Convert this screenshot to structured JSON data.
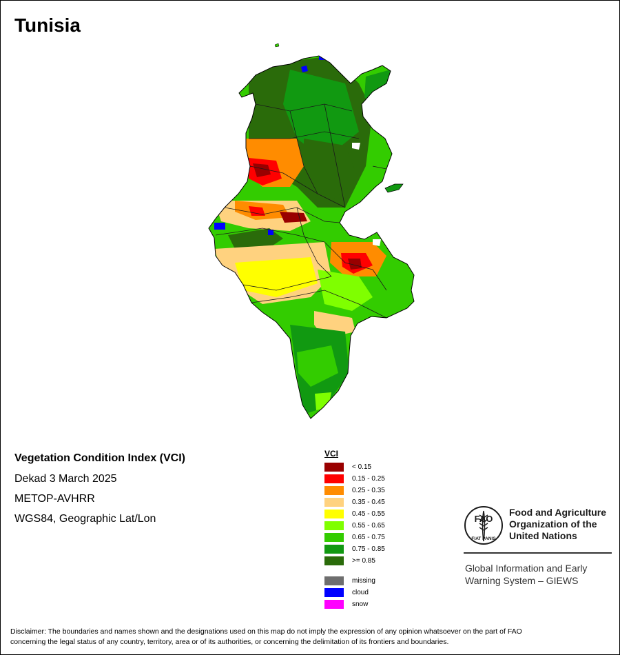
{
  "map": {
    "title": "Tunisia",
    "info": {
      "index_name": "Vegetation Condition Index (VCI)",
      "period": "Dekad 3 March 2025",
      "sensor": "METOP-AVHRR",
      "projection": "WGS84, Geographic Lat/Lon"
    },
    "legend": {
      "title": "VCI",
      "classes": [
        {
          "label": "< 0.15",
          "color": "#990000"
        },
        {
          "label": "0.15 - 0.25",
          "color": "#ff0000"
        },
        {
          "label": "0.25 - 0.35",
          "color": "#ff8c00"
        },
        {
          "label": "0.35 - 0.45",
          "color": "#ffd27f"
        },
        {
          "label": "0.45 - 0.55",
          "color": "#ffff00"
        },
        {
          "label": "0.55 - 0.65",
          "color": "#7fff00"
        },
        {
          "label": "0.65 - 0.75",
          "color": "#33cc00"
        },
        {
          "label": "0.75 - 0.85",
          "color": "#119911"
        },
        {
          "label": ">= 0.85",
          "color": "#2a6b0a"
        }
      ],
      "special": [
        {
          "label": "missing",
          "color": "#6e6e6e"
        },
        {
          "label": "cloud",
          "color": "#0000ff"
        },
        {
          "label": "snow",
          "color": "#ff00ff"
        }
      ]
    }
  },
  "org": {
    "name_line1": "Food and Agriculture",
    "name_line2": "Organization of the",
    "name_line3": "United Nations",
    "giews_line1": "Global Information and Early",
    "giews_line2": "Warning System – GIEWS",
    "emblem_top": "FAO",
    "emblem_motto": "FIAT PANIS",
    "emblem_color": "#1b1b1b"
  },
  "disclaimer": {
    "line1": "Disclaimer: The boundaries and names shown and the designations used on this map do not imply the expression of any opinion whatsoever on the part of FAO",
    "line2": "concerning the legal status of any country, territory, area or of its authorities, or concerning the delimitation of its frontiers and boundaries."
  }
}
